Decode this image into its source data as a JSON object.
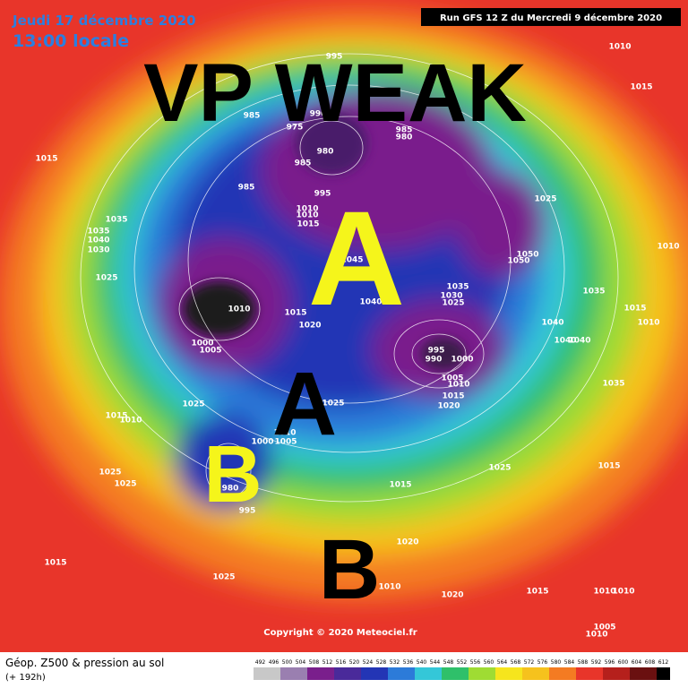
{
  "header": {
    "date": "Jeudi 17 décembre 2020",
    "time": "13:00 locale",
    "run": "Run GFS 12 Z du Mercredi 9 décembre 2020"
  },
  "annotations": {
    "headline": "VP WEAK",
    "high_1": "A",
    "high_2": "A",
    "low_1": "B",
    "low_2": "B"
  },
  "isobar_labels": [
    995,
    1010,
    1015,
    985,
    990,
    975,
    985,
    980,
    980,
    985,
    1015,
    985,
    995,
    1025,
    1010,
    1010,
    1015,
    1035,
    1035,
    1040,
    1030,
    1025,
    1045,
    1050,
    1050,
    1010,
    1035,
    1030,
    1025,
    1035,
    1010,
    1015,
    1040,
    1020,
    1015,
    1010,
    1040,
    1040,
    1040,
    995,
    990,
    1000,
    1000,
    1005,
    1005,
    1010,
    1035,
    1015,
    1020,
    1025,
    1025,
    1015,
    1010,
    1010,
    1005,
    1000,
    1025,
    1025,
    980,
    995,
    1025,
    1015,
    1015,
    1015,
    1020,
    1025,
    1010,
    1015,
    1020,
    1010,
    1010,
    1005,
    1010
  ],
  "copyright": "Copyright © 2020 Meteociel.fr",
  "footer": {
    "title": "Géop. Z500 & pression au sol",
    "lead": "(+ 192h)"
  },
  "colorbar": {
    "labels": [
      492,
      496,
      500,
      504,
      508,
      512,
      516,
      520,
      524,
      528,
      532,
      536,
      540,
      544,
      548,
      552,
      556,
      560,
      564,
      568,
      572,
      576,
      580,
      584,
      588,
      592,
      596,
      600,
      604,
      608,
      612
    ]
  }
}
